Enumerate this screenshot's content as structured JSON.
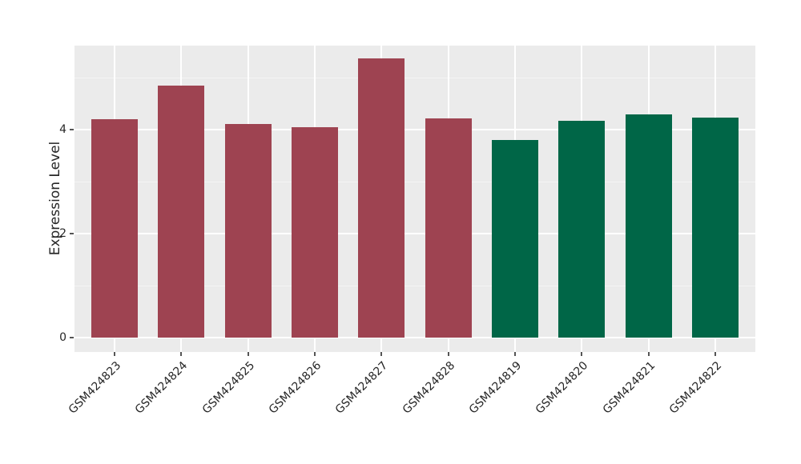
{
  "figure": {
    "background": "#ffffff",
    "panel_background": "#ebebeb",
    "grid_major_color": "#ffffff",
    "grid_minor_color": "#f5f5f5",
    "tick_mark_color": "#555555",
    "text_color": "#262626",
    "red_bar_color": "#9e4351",
    "green_bar_color": "#006647"
  },
  "chart_data": {
    "type": "bar",
    "title": "",
    "xlabel": "",
    "ylabel": "Expression Level",
    "categories": [
      "GSM424823",
      "GSM424824",
      "GSM424825",
      "GSM424826",
      "GSM424827",
      "GSM424828",
      "GSM424819",
      "GSM424820",
      "GSM424821",
      "GSM424822"
    ],
    "values": [
      4.2,
      4.85,
      4.12,
      4.05,
      5.37,
      4.22,
      3.81,
      4.18,
      4.29,
      4.23
    ],
    "bar_colors": [
      "#9e4351",
      "#9e4351",
      "#9e4351",
      "#9e4351",
      "#9e4351",
      "#9e4351",
      "#006647",
      "#006647",
      "#006647",
      "#006647"
    ],
    "groups": [
      {
        "name": "maroon-group",
        "color": "#9e4351",
        "categories": [
          "GSM424823",
          "GSM424824",
          "GSM424825",
          "GSM424826",
          "GSM424827",
          "GSM424828"
        ]
      },
      {
        "name": "green-group",
        "color": "#006647",
        "categories": [
          "GSM424819",
          "GSM424820",
          "GSM424821",
          "GSM424822"
        ]
      }
    ],
    "yticks": [
      0,
      2,
      4
    ],
    "yminor_ticks": [
      1,
      3,
      5
    ],
    "ylim": [
      -0.27,
      5.62
    ],
    "x_label_angle": -45,
    "bar_width_fraction": 0.7,
    "x_padding_units": 0.6,
    "grid": true,
    "legend": false
  }
}
